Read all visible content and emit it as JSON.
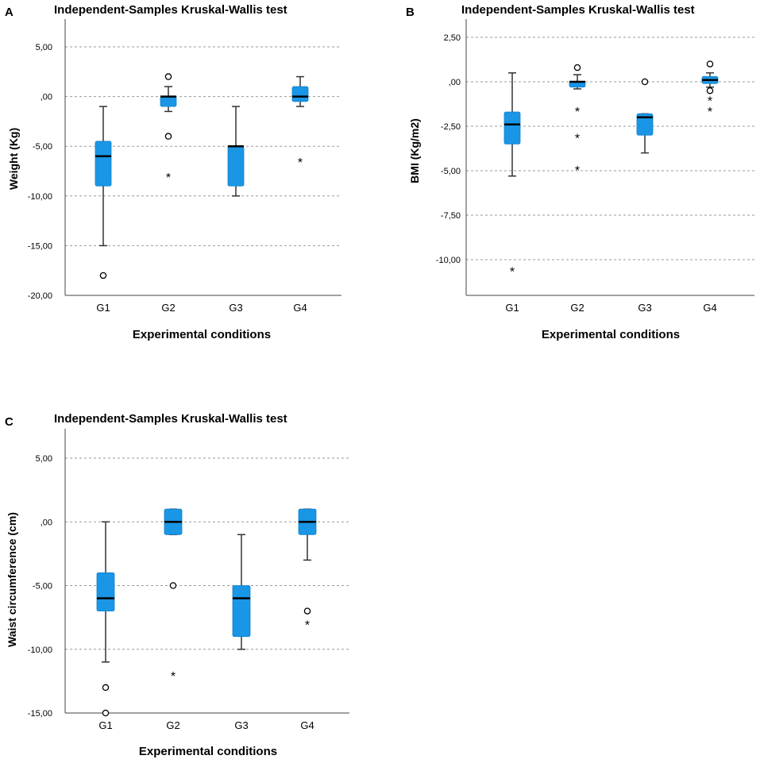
{
  "panels": [
    {
      "letter": "A",
      "title": "Independent-Samples Kruskal-Wallis test",
      "xlabel": "Experimental conditions",
      "ylabel": "Weight (Kg)",
      "yticks": [
        5,
        0,
        -5,
        -10,
        -15,
        -20
      ],
      "ytick_labels": [
        "5,00",
        ",00",
        "-5,00",
        "-10,00",
        "-15,00",
        "-20,00"
      ],
      "categories": [
        "G1",
        "G2",
        "G3",
        "G4"
      ]
    },
    {
      "letter": "B",
      "title": "Independent-Samples Kruskal-Wallis test",
      "xlabel": "Experimental conditions",
      "ylabel": "BMI (Kg/m2)",
      "yticks": [
        2.5,
        0,
        -2.5,
        -5,
        -7.5,
        -10
      ],
      "ytick_labels": [
        "2,50",
        ",00",
        "-2,50",
        "-5,00",
        "-7,50",
        "-10,00"
      ],
      "categories": [
        "G1",
        "G2",
        "G3",
        "G4"
      ]
    },
    {
      "letter": "C",
      "title": "Independent-Samples Kruskal-Wallis test",
      "xlabel": "Experimental conditions",
      "ylabel": "Waist circumference (cm)",
      "yticks": [
        5,
        0,
        -5,
        -10,
        -15
      ],
      "ytick_labels": [
        "5,00",
        ",00",
        "-5,00",
        "-10,00",
        "-15,00"
      ],
      "categories": [
        "G1",
        "G2",
        "G3",
        "G4"
      ]
    }
  ],
  "chart_data": [
    {
      "type": "boxplot",
      "title": "Independent-Samples Kruskal-Wallis test",
      "xlabel": "Experimental conditions",
      "ylabel": "Weight (Kg)",
      "ylim": [
        -20,
        7.5
      ],
      "categories": [
        "G1",
        "G2",
        "G3",
        "G4"
      ],
      "boxes": [
        {
          "category": "G1",
          "whisker_low": -15,
          "q1": -9,
          "median": -6,
          "q3": -4.5,
          "whisker_high": -1,
          "outliers": [
            -18
          ],
          "extremes": []
        },
        {
          "category": "G2",
          "whisker_low": -1.5,
          "q1": -1,
          "median": 0,
          "q3": 0,
          "whisker_high": 1,
          "outliers": [
            2,
            -4
          ],
          "extremes": [
            -8
          ]
        },
        {
          "category": "G3",
          "whisker_low": -10,
          "q1": -9,
          "median": -5,
          "q3": -5,
          "whisker_high": -1,
          "outliers": [],
          "extremes": []
        },
        {
          "category": "G4",
          "whisker_low": -1,
          "q1": -0.5,
          "median": 0,
          "q3": 1,
          "whisker_high": 2,
          "outliers": [],
          "extremes": [
            -6.5
          ]
        }
      ]
    },
    {
      "type": "boxplot",
      "title": "Independent-Samples Kruskal-Wallis test",
      "xlabel": "Experimental conditions",
      "ylabel": "BMI (Kg/m2)",
      "ylim": [
        -12,
        3.5
      ],
      "categories": [
        "G1",
        "G2",
        "G3",
        "G4"
      ],
      "boxes": [
        {
          "category": "G1",
          "whisker_low": -5.3,
          "q1": -3.5,
          "median": -2.4,
          "q3": -1.7,
          "whisker_high": 0.5,
          "outliers": [],
          "extremes": [
            -10.6
          ]
        },
        {
          "category": "G2",
          "whisker_low": -0.4,
          "q1": -0.3,
          "median": 0,
          "q3": 0,
          "whisker_high": 0.4,
          "outliers": [
            0.8
          ],
          "extremes": [
            -1.6,
            -3.1,
            -4.9
          ]
        },
        {
          "category": "G3",
          "whisker_low": -4,
          "q1": -3,
          "median": -2,
          "q3": -1.8,
          "whisker_high": -1.8,
          "outliers": [
            0
          ],
          "extremes": []
        },
        {
          "category": "G4",
          "whisker_low": -0.3,
          "q1": -0.1,
          "median": 0.1,
          "q3": 0.3,
          "whisker_high": 0.5,
          "outliers": [
            1,
            -0.5
          ],
          "extremes": [
            -1,
            -1.6
          ]
        }
      ]
    },
    {
      "type": "boxplot",
      "title": "Independent-Samples Kruskal-Wallis test",
      "xlabel": "Experimental conditions",
      "ylabel": "Waist circumference (cm)",
      "ylim": [
        -15,
        7.5
      ],
      "categories": [
        "G1",
        "G2",
        "G3",
        "G4"
      ],
      "boxes": [
        {
          "category": "G1",
          "whisker_low": -11,
          "q1": -7,
          "median": -6,
          "q3": -4,
          "whisker_high": 0,
          "outliers": [
            -13,
            -15
          ],
          "extremes": []
        },
        {
          "category": "G2",
          "whisker_low": -1,
          "q1": -1,
          "median": 0,
          "q3": 1,
          "whisker_high": 1,
          "outliers": [
            -5
          ],
          "extremes": [
            -12
          ]
        },
        {
          "category": "G3",
          "whisker_low": -10,
          "q1": -9,
          "median": -6,
          "q3": -5,
          "whisker_high": -1,
          "outliers": [],
          "extremes": []
        },
        {
          "category": "G4",
          "whisker_low": -3,
          "q1": -1,
          "median": 0,
          "q3": 1,
          "whisker_high": 1,
          "outliers": [
            -7
          ],
          "extremes": [
            -8
          ]
        }
      ]
    }
  ]
}
